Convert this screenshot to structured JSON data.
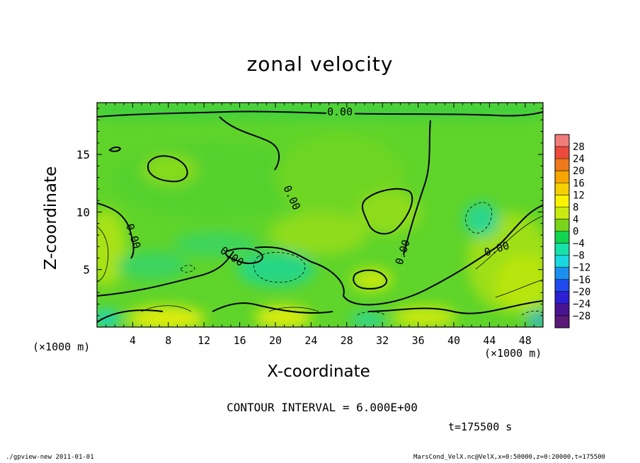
{
  "chart_data": {
    "type": "heatmap",
    "title": "zonal velocity",
    "xlabel": "X-coordinate",
    "ylabel": "Z-coordinate",
    "x_unit_label": "(×1000 m)",
    "xlim": [
      0,
      50
    ],
    "ylim": [
      0,
      19.5
    ],
    "x_ticks": [
      "4",
      "8",
      "12",
      "16",
      "20",
      "24",
      "28",
      "32",
      "36",
      "40",
      "44",
      "48"
    ],
    "y_ticks": [
      "5",
      "10",
      "15"
    ],
    "colorbar": {
      "levels": [
        "28",
        "24",
        "20",
        "16",
        "12",
        "8",
        "4",
        "0",
        "−4",
        "−8",
        "−12",
        "−16",
        "−20",
        "−24",
        "−28"
      ],
      "colors": [
        "#f27c7c",
        "#ec4b3c",
        "#ef7a1c",
        "#f7a500",
        "#f6d000",
        "#f9f200",
        "#c9ea10",
        "#7ad41a",
        "#12d450",
        "#17e2a8",
        "#19d8e0",
        "#1c90ee",
        "#1f4aef",
        "#2d1fd4",
        "#4a1390",
        "#5a1a78"
      ]
    },
    "contour_label": "0.00",
    "contour_interval": "CONTOUR INTERVAL = 6.000E+00",
    "time": "t=175500 s"
  },
  "footer": {
    "left": "./gpview-new  2011-01-01",
    "right": "MarsCond_VelX.nc@VelX,x=0:50000,z=0:20000,t=175500"
  }
}
